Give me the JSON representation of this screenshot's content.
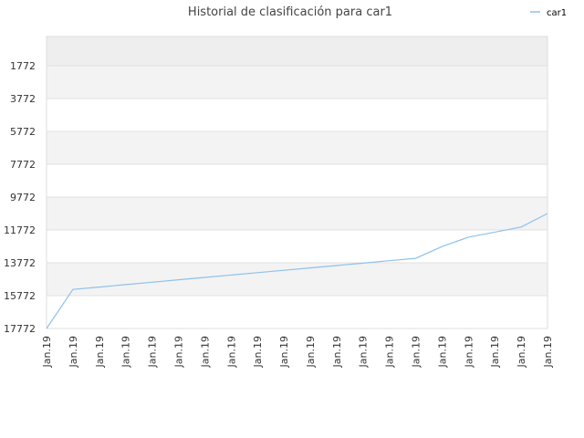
{
  "chart_data": {
    "type": "line",
    "title": "Historial de clasificación para car1",
    "categories": [
      "Jan.19",
      "Jan.19",
      "Jan.19",
      "Jan.19",
      "Jan.19",
      "Jan.19",
      "Jan.19",
      "Jan.19",
      "Jan.19",
      "Jan.19",
      "Jan.19",
      "Jan.19",
      "Jan.19",
      "Jan.19",
      "Jan.19",
      "Jan.19",
      "Jan.19",
      "Jan.19",
      "Jan.19",
      "Jan.19"
    ],
    "series": [
      {
        "name": "car1",
        "color": "#8ec1ec",
        "values": [
          17772,
          15394,
          15250,
          15100,
          14956,
          14806,
          14661,
          14517,
          14372,
          14228,
          14083,
          13939,
          13794,
          13644,
          13500,
          12783,
          12211,
          11906,
          11594,
          10772
        ]
      }
    ],
    "ylim": [
      17772,
      -6
    ],
    "yticks": [
      1772,
      3772,
      5772,
      7772,
      9772,
      11772,
      13772,
      15772,
      17772
    ],
    "inverted_y": true,
    "grid": true,
    "legend": "top-right"
  }
}
